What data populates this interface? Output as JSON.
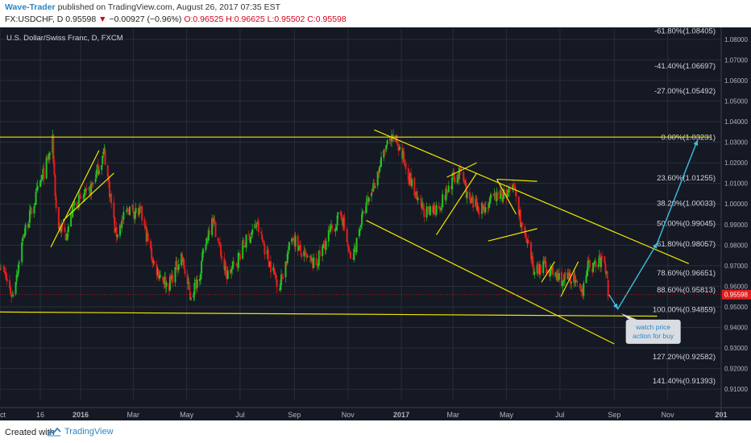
{
  "header": {
    "author": "Wave-Trader",
    "published_text": "published on TradingView.com, August 26, 2017 07:35 EST",
    "symbol": "FX:USDCHF, D",
    "last": "0.95598",
    "change_arrow": "▼",
    "change": "−0.00927 (−0.96%)",
    "ohlc": "O:0.96525 H:0.96625 L:0.95502 C:0.95598"
  },
  "footer": {
    "created_with": "Created with",
    "brand": "TradingView"
  },
  "colors": {
    "background": "#151924",
    "grid": "#2a2e39",
    "bull": "#22c322",
    "bear": "#e21d1d",
    "pattern": "#f2e600",
    "forecast": "#3bbfe0",
    "price_tag": "#e21d1d"
  },
  "chart_data": {
    "type": "candlestick",
    "title": "U.S. Dollar/Swiss Franc, D, FXCM",
    "price_axis": {
      "min": 0.905,
      "max": 1.085,
      "ticks": [
        "1.08000",
        "1.07000",
        "1.06000",
        "1.05000",
        "1.04000",
        "1.03000",
        "1.02000",
        "1.01000",
        "1.00000",
        "0.99000",
        "0.98000",
        "0.97000",
        "0.96000",
        "0.95000",
        "0.94000",
        "0.93000",
        "0.92000",
        "0.91000"
      ],
      "current_price_label": "0.95598"
    },
    "time_axis": {
      "start": "2015-10-01",
      "end": "2018-01-01",
      "ticks": [
        {
          "date": "2015-10-01",
          "label": "Oct"
        },
        {
          "date": "2015-11-16",
          "label": "16"
        },
        {
          "date": "2016-01-01",
          "label": "2016"
        },
        {
          "date": "2016-03-01",
          "label": "Mar"
        },
        {
          "date": "2016-05-01",
          "label": "May"
        },
        {
          "date": "2016-07-01",
          "label": "Jul"
        },
        {
          "date": "2016-09-01",
          "label": "Sep"
        },
        {
          "date": "2016-11-01",
          "label": "Nov"
        },
        {
          "date": "2017-01-01",
          "label": "2017"
        },
        {
          "date": "2017-03-01",
          "label": "Mar"
        },
        {
          "date": "2017-05-01",
          "label": "May"
        },
        {
          "date": "2017-07-01",
          "label": "Jul"
        },
        {
          "date": "2017-09-01",
          "label": "Sep"
        },
        {
          "date": "2017-11-01",
          "label": "Nov"
        },
        {
          "date": "2018-01-01",
          "label": "201"
        }
      ]
    },
    "price_path": [
      [
        "2015-10-01",
        0.972
      ],
      [
        "2015-10-15",
        0.955
      ],
      [
        "2015-10-28",
        0.985
      ],
      [
        "2015-11-10",
        1.002
      ],
      [
        "2015-11-25",
        1.022
      ],
      [
        "2015-11-30",
        1.03
      ],
      [
        "2015-12-05",
        0.99
      ],
      [
        "2015-12-15",
        0.985
      ],
      [
        "2015-12-25",
        1.0
      ],
      [
        "2016-01-10",
        1.005
      ],
      [
        "2016-01-28",
        1.025
      ],
      [
        "2016-02-10",
        0.985
      ],
      [
        "2016-02-25",
        0.998
      ],
      [
        "2016-03-10",
        0.995
      ],
      [
        "2016-03-25",
        0.97
      ],
      [
        "2016-04-10",
        0.96
      ],
      [
        "2016-04-25",
        0.975
      ],
      [
        "2016-05-05",
        0.955
      ],
      [
        "2016-05-15",
        0.965
      ],
      [
        "2016-05-30",
        0.995
      ],
      [
        "2016-06-15",
        0.965
      ],
      [
        "2016-06-25",
        0.97
      ],
      [
        "2016-07-05",
        0.98
      ],
      [
        "2016-07-20",
        0.99
      ],
      [
        "2016-08-05",
        0.97
      ],
      [
        "2016-08-15",
        0.96
      ],
      [
        "2016-08-30",
        0.985
      ],
      [
        "2016-09-10",
        0.975
      ],
      [
        "2016-09-25",
        0.97
      ],
      [
        "2016-10-10",
        0.985
      ],
      [
        "2016-10-25",
        0.995
      ],
      [
        "2016-11-05",
        0.97
      ],
      [
        "2016-11-15",
        0.99
      ],
      [
        "2016-12-01",
        1.01
      ],
      [
        "2016-12-15",
        1.028
      ],
      [
        "2016-12-25",
        1.032
      ],
      [
        "2017-01-05",
        1.02
      ],
      [
        "2017-01-20",
        1.0
      ],
      [
        "2017-02-01",
        0.995
      ],
      [
        "2017-02-15",
        1.0
      ],
      [
        "2017-03-01",
        1.012
      ],
      [
        "2017-03-10",
        1.016
      ],
      [
        "2017-03-20",
        1.0
      ],
      [
        "2017-04-05",
        0.998
      ],
      [
        "2017-04-20",
        1.004
      ],
      [
        "2017-05-05",
        1.005
      ],
      [
        "2017-05-10",
        1.008
      ],
      [
        "2017-05-18",
        0.99
      ],
      [
        "2017-06-01",
        0.968
      ],
      [
        "2017-06-15",
        0.97
      ],
      [
        "2017-06-25",
        0.965
      ],
      [
        "2017-07-05",
        0.963
      ],
      [
        "2017-07-15",
        0.965
      ],
      [
        "2017-07-25",
        0.955
      ],
      [
        "2017-08-01",
        0.97
      ],
      [
        "2017-08-10",
        0.97
      ],
      [
        "2017-08-18",
        0.973
      ],
      [
        "2017-08-24",
        0.966
      ],
      [
        "2017-08-25",
        0.956
      ]
    ],
    "fibonacci_levels": [
      {
        "ratio": "-61.80%",
        "price": 1.08405,
        "label": "-61.80%(1.08405)"
      },
      {
        "ratio": "-41.40%",
        "price": 1.06697,
        "label": "-41.40%(1.06697)"
      },
      {
        "ratio": "-27.00%",
        "price": 1.05492,
        "label": "-27.00%(1.05492)"
      },
      {
        "ratio": "0.00%",
        "price": 1.03231,
        "label": "0.00%(1.03231)"
      },
      {
        "ratio": "23.60%",
        "price": 1.01255,
        "label": "23.60%(1.01255)"
      },
      {
        "ratio": "38.20%",
        "price": 1.00033,
        "label": "38.20%(1.00033)"
      },
      {
        "ratio": "50.00%",
        "price": 0.99045,
        "label": "50.00%(0.99045)"
      },
      {
        "ratio": "61.80%",
        "price": 0.98057,
        "label": "61.80%(0.98057)"
      },
      {
        "ratio": "78.60%",
        "price": 0.96651,
        "label": "78.60%(0.96651)"
      },
      {
        "ratio": "88.60%",
        "price": 0.95813,
        "label": "88.60%(0.95813)"
      },
      {
        "ratio": "100.00%",
        "price": 0.94859,
        "label": "100.00%(0.94859)"
      },
      {
        "ratio": "127.20%",
        "price": 0.92582,
        "label": "127.20%(0.92582)"
      },
      {
        "ratio": "141.40%",
        "price": 0.91393,
        "label": "141.40%(0.91393)"
      }
    ],
    "trend_lines": [
      {
        "from": [
          "2015-10-01",
          1.0325
        ],
        "to": [
          "2017-12-20",
          1.0325
        ]
      },
      {
        "from": [
          "2015-10-01",
          0.9475
        ],
        "to": [
          "2017-10-20",
          0.9455
        ]
      },
      {
        "from": [
          "2016-12-01",
          1.036
        ],
        "to": [
          "2017-11-25",
          0.971
        ]
      },
      {
        "from": [
          "2016-11-22",
          0.992
        ],
        "to": [
          "2017-09-01",
          0.932
        ]
      },
      {
        "from": [
          "2015-11-28",
          0.979
        ],
        "to": [
          "2016-01-22",
          1.026
        ]
      },
      {
        "from": [
          "2015-12-12",
          0.992
        ],
        "to": [
          "2016-02-08",
          1.015
        ]
      },
      {
        "from": [
          "2017-02-10",
          0.985
        ],
        "to": [
          "2017-03-28",
          1.015
        ]
      },
      {
        "from": [
          "2017-02-22",
          1.013
        ],
        "to": [
          "2017-03-28",
          1.02
        ]
      },
      {
        "from": [
          "2017-04-20",
          1.012
        ],
        "to": [
          "2017-05-12",
          0.995
        ]
      },
      {
        "from": [
          "2017-04-20",
          1.012
        ],
        "to": [
          "2017-06-05",
          1.011
        ]
      },
      {
        "from": [
          "2017-04-10",
          0.982
        ],
        "to": [
          "2017-06-05",
          0.988
        ]
      },
      {
        "from": [
          "2017-06-10",
          0.962
        ],
        "to": [
          "2017-06-25",
          0.972
        ]
      },
      {
        "from": [
          "2017-07-02",
          0.955
        ],
        "to": [
          "2017-07-22",
          0.972
        ]
      }
    ],
    "forecast_path": [
      [
        "2017-08-26",
        0.956
      ],
      [
        "2017-09-05",
        0.949
      ],
      [
        "2017-10-20",
        0.981
      ],
      [
        "2017-12-05",
        1.031
      ]
    ],
    "callout": {
      "line1": "watch price",
      "line2": "action for buy",
      "anchor": [
        "2017-09-05",
        0.9485
      ]
    }
  }
}
